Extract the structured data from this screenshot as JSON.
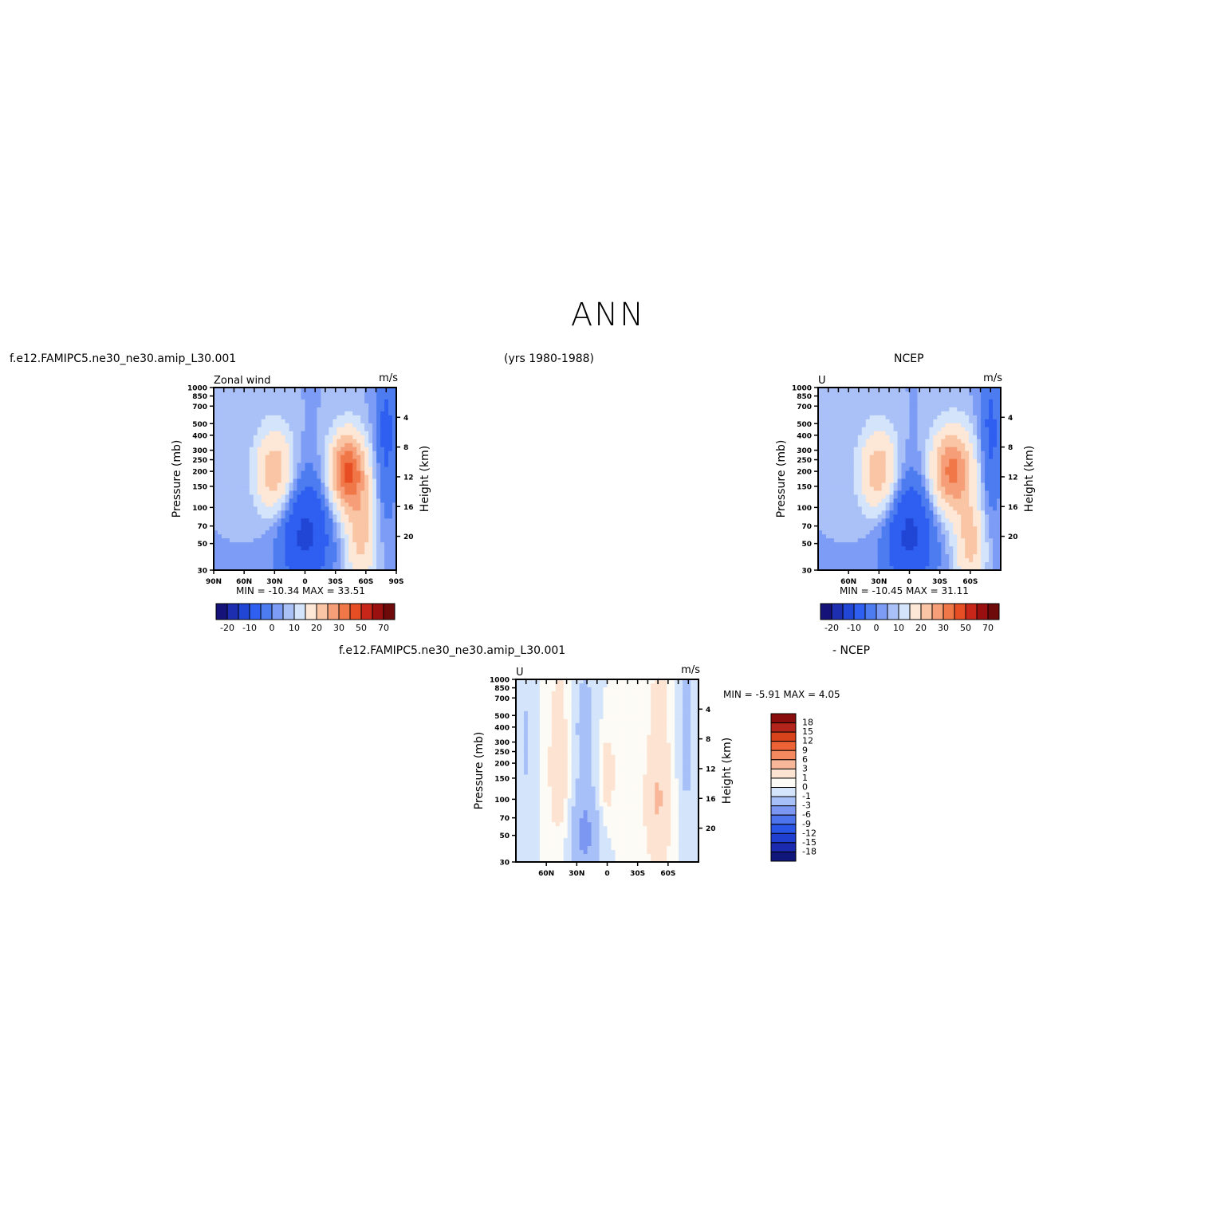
{
  "figure": {
    "title": "ANN",
    "case_name": "f.e12.FAMIPC5.ne30_ne30.amip_L30.001",
    "years": "(yrs 1980-1988)",
    "obs_name": "NCEP",
    "diff_case_name": "f.e12.FAMIPC5.ne30_ne30.amip_L30.001",
    "diff_obs_label": "- NCEP"
  },
  "colors": {
    "main_palette": [
      "#15127a",
      "#1d2eb0",
      "#2145d4",
      "#2f5ff0",
      "#4d7cf0",
      "#7c9cf5",
      "#a9c1f7",
      "#d4e4fb",
      "#fde7d6",
      "#f9c5a5",
      "#f59e78",
      "#f07748",
      "#e84e23",
      "#c9261a",
      "#9a1010",
      "#6e0a0a"
    ],
    "diff_palette": [
      "#10167a",
      "#1a2bb0",
      "#1e3fd0",
      "#2a56e8",
      "#4d74ec",
      "#7b97f2",
      "#a8c0f8",
      "#d3e4fb",
      "#fdfbf5",
      "#fde3d2",
      "#f9b79a",
      "#f4895f",
      "#ee6335",
      "#d8431c",
      "#b3241a",
      "#8a0d0d"
    ]
  },
  "chart_data": [
    {
      "type": "heatmap",
      "panel": "model",
      "title": "Zonal wind",
      "units": "m/s",
      "ylabel": "Pressure (mb)",
      "ylabel_right": "Height (km)",
      "x_ticks": [
        "90N",
        "60N",
        "30N",
        "0",
        "30S",
        "60S",
        "90S"
      ],
      "y_ticks": [
        "30",
        "50",
        "70",
        "100",
        "150",
        "200",
        "250",
        "300",
        "400",
        "500",
        "700",
        "850",
        "1000"
      ],
      "y_ticks_right": [
        "20",
        "16",
        "12",
        "8",
        "4"
      ],
      "xlim": [
        90,
        -90
      ],
      "ylim": [
        1000,
        30
      ],
      "min_max": "MIN = -10.34   MAX =  33.51",
      "colorbar_labels": [
        "-20",
        "-10",
        "0",
        "10",
        "20",
        "30",
        "50",
        "70"
      ],
      "features": [
        {
          "lat": 30,
          "p": 200,
          "sx": 13,
          "sy": 0.55,
          "amp": 14
        },
        {
          "lat": -42,
          "p": 200,
          "sx": 12,
          "sy": 0.5,
          "amp": 26
        },
        {
          "lat": -55,
          "p": 60,
          "sx": 10,
          "sy": 0.7,
          "amp": 12
        },
        {
          "lat": 0,
          "p": 60,
          "sx": 18,
          "sy": 0.8,
          "amp": -11
        },
        {
          "lat": -80,
          "p": 400,
          "sx": 8,
          "sy": 1.2,
          "amp": -6
        }
      ]
    },
    {
      "type": "heatmap",
      "panel": "obs",
      "title": "U",
      "units": "m/s",
      "ylabel": "Pressure (mb)",
      "ylabel_right": "Height (km)",
      "x_ticks": [
        "60N",
        "30N",
        "0",
        "30S",
        "60S"
      ],
      "y_ticks": [
        "30",
        "50",
        "70",
        "100",
        "150",
        "200",
        "250",
        "300",
        "400",
        "500",
        "700",
        "850",
        "1000"
      ],
      "y_ticks_right": [
        "20",
        "16",
        "12",
        "8",
        "4"
      ],
      "xlim": [
        90,
        -90
      ],
      "ylim": [
        1000,
        30
      ],
      "min_max": "MIN = -10.45   MAX =  31.11",
      "colorbar_labels": [
        "-20",
        "-10",
        "0",
        "10",
        "20",
        "30",
        "50",
        "70"
      ],
      "features": [
        {
          "lat": 30,
          "p": 200,
          "sx": 13,
          "sy": 0.55,
          "amp": 14
        },
        {
          "lat": -42,
          "p": 200,
          "sx": 14,
          "sy": 0.55,
          "amp": 22
        },
        {
          "lat": -60,
          "p": 50,
          "sx": 10,
          "sy": 0.6,
          "amp": 12
        },
        {
          "lat": 0,
          "p": 60,
          "sx": 18,
          "sy": 0.8,
          "amp": -11
        },
        {
          "lat": -80,
          "p": 400,
          "sx": 8,
          "sy": 1.2,
          "amp": -6
        }
      ]
    },
    {
      "type": "heatmap",
      "panel": "difference",
      "title": "U",
      "units": "m/s",
      "ylabel": "Pressure (mb)",
      "ylabel_right": "Height (km)",
      "x_ticks": [
        "60N",
        "30N",
        "0",
        "30S",
        "60S"
      ],
      "y_ticks": [
        "30",
        "50",
        "70",
        "100",
        "150",
        "200",
        "250",
        "300",
        "400",
        "500",
        "700",
        "850",
        "1000"
      ],
      "y_ticks_right": [
        "20",
        "16",
        "12",
        "8",
        "4"
      ],
      "xlim": [
        90,
        -90
      ],
      "ylim": [
        1000,
        30
      ],
      "min_max": "MIN =   -5.91   MAX =    4.05",
      "colorbar_labels": [
        "18",
        "15",
        "12",
        "9",
        "6",
        "3",
        "1",
        "0",
        "-1",
        "-3",
        "-6",
        "-9",
        "-12",
        "-15",
        "-18"
      ],
      "features": [
        {
          "lat": 48,
          "p": 150,
          "sx": 6,
          "sy": 0.7,
          "amp": 2.5
        },
        {
          "lat": 48,
          "p": 600,
          "sx": 7,
          "sy": 1.0,
          "amp": 1.2
        },
        {
          "lat": 0,
          "p": 160,
          "sx": 5,
          "sy": 0.5,
          "amp": 2.2
        },
        {
          "lat": 22,
          "p": 50,
          "sx": 9,
          "sy": 0.6,
          "amp": -3.5
        },
        {
          "lat": 22,
          "p": 400,
          "sx": 7,
          "sy": 0.9,
          "amp": -1.8
        },
        {
          "lat": -50,
          "p": 100,
          "sx": 9,
          "sy": 0.9,
          "amp": 3.2
        },
        {
          "lat": -52,
          "p": 700,
          "sx": 7,
          "sy": 0.6,
          "amp": 1.6
        },
        {
          "lat": -78,
          "p": 350,
          "sx": 6,
          "sy": 1.2,
          "amp": -1.6
        },
        {
          "lat": -15,
          "p": 500,
          "sx": 6,
          "sy": 1.0,
          "amp": 0.8
        },
        {
          "lat": 80,
          "p": 300,
          "sx": 6,
          "sy": 1.0,
          "amp": -1.2
        }
      ]
    }
  ]
}
